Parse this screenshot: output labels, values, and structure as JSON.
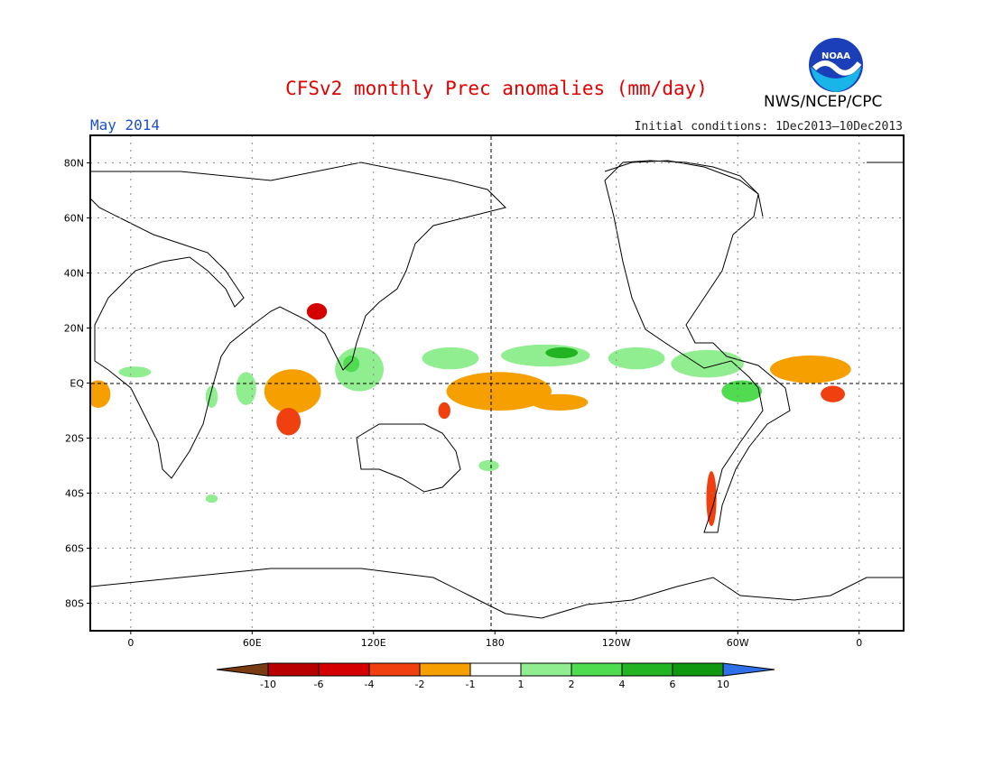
{
  "title": "CFSv2 monthly Prec anomalies (mm/day)",
  "agency": "NWS/NCEP/CPC",
  "logo_text": "NOAA",
  "period": "May 2014",
  "initial_conditions": "Initial conditions: 1Dec2013–10Dec2013",
  "map": {
    "lon_range": [
      -20,
      22
    ],
    "lat_range": [
      -90,
      90
    ],
    "lat_ticks": [
      "80N",
      "60N",
      "40N",
      "20N",
      "EQ",
      "20S",
      "40S",
      "60S",
      "80S"
    ],
    "lon_ticks": [
      "0",
      "60E",
      "120E",
      "180",
      "120W",
      "60W",
      "0"
    ],
    "grid": "dotted",
    "reference_lines": [
      "EQ",
      "180"
    ]
  },
  "colorbar": {
    "labels": [
      "-10",
      "-6",
      "-4",
      "-2",
      "-1",
      "1",
      "2",
      "4",
      "6",
      "10"
    ],
    "colors": [
      "#7a3b12",
      "#b80000",
      "#d40000",
      "#f04010",
      "#f5a000",
      "#ffffff",
      "#90ee90",
      "#50dc50",
      "#22b422",
      "#109810",
      "#2f6fe8"
    ]
  },
  "anomalies": [
    {
      "name": "central-pacific-dry",
      "lon": 180,
      "lat": -2,
      "w": 18,
      "h": 5,
      "color": "#f04010"
    },
    {
      "name": "central-pacific-dry-core",
      "lon": 178,
      "lat": -1,
      "w": 10,
      "h": 3,
      "color": "#d40000"
    },
    {
      "name": "central-pacific-dry-edge",
      "lon": 182,
      "lat": -3,
      "w": 26,
      "h": 7,
      "color": "#f5a000"
    },
    {
      "name": "east-pacific-dry",
      "lon": 212,
      "lat": -7,
      "w": 14,
      "h": 3,
      "color": "#f5a000"
    },
    {
      "name": "atlantic-dry",
      "lon": 332,
      "lat": 5,
      "w": 16,
      "h": 4,
      "color": "#f04010"
    },
    {
      "name": "atlantic-dry-core",
      "lon": 330,
      "lat": 5,
      "w": 6,
      "h": 2,
      "color": "#b80000"
    },
    {
      "name": "atlantic-dry-edge",
      "lon": 336,
      "lat": 5,
      "w": 20,
      "h": 5,
      "color": "#f5a000"
    },
    {
      "name": "indian-ocean-dry",
      "lon": 80,
      "lat": -2,
      "w": 10,
      "h": 5,
      "color": "#f04010"
    },
    {
      "name": "indian-ocean-dry-edge",
      "lon": 80,
      "lat": -3,
      "w": 14,
      "h": 8,
      "color": "#f5a000"
    },
    {
      "name": "s-indian-dry",
      "lon": 78,
      "lat": -14,
      "w": 6,
      "h": 5,
      "color": "#f04010"
    },
    {
      "name": "tibet-dry",
      "lon": 92,
      "lat": 26,
      "w": 5,
      "h": 3,
      "color": "#d40000"
    },
    {
      "name": "andes-dry",
      "lon": 287,
      "lat": -42,
      "w": 2.5,
      "h": 10,
      "color": "#f04010"
    },
    {
      "name": "gulf-guinea-dry",
      "lon": 347,
      "lat": -4,
      "w": 6,
      "h": 3,
      "color": "#f04010"
    },
    {
      "name": "w-africa-coast-dry",
      "lon": -16,
      "lat": -4,
      "w": 6,
      "h": 5,
      "color": "#f5a000"
    },
    {
      "name": "new-guinea-dry",
      "lon": 155,
      "lat": -10,
      "w": 3,
      "h": 3,
      "color": "#f04010"
    },
    {
      "name": "pacific-itcz-wet",
      "lon": 205,
      "lat": 10,
      "w": 22,
      "h": 4,
      "color": "#90ee90"
    },
    {
      "name": "pacific-itcz-wet-core",
      "lon": 213,
      "lat": 11,
      "w": 8,
      "h": 2,
      "color": "#22b422"
    },
    {
      "name": "west-pacific-wet",
      "lon": 158,
      "lat": 9,
      "w": 14,
      "h": 4,
      "color": "#90ee90"
    },
    {
      "name": "e-pacific-wet",
      "lon": 250,
      "lat": 9,
      "w": 14,
      "h": 4,
      "color": "#90ee90"
    },
    {
      "name": "caribbean-wet",
      "lon": 285,
      "lat": 7,
      "w": 18,
      "h": 5,
      "color": "#90ee90"
    },
    {
      "name": "amazon-wet",
      "lon": 302,
      "lat": -3,
      "w": 10,
      "h": 4,
      "color": "#50dc50"
    },
    {
      "name": "e-africa-wet",
      "lon": 40,
      "lat": -5,
      "w": 3,
      "h": 4,
      "color": "#90ee90"
    },
    {
      "name": "w-indian-wet",
      "lon": 57,
      "lat": -2,
      "w": 5,
      "h": 6,
      "color": "#90ee90"
    },
    {
      "name": "maritime-wet",
      "lon": 113,
      "lat": 5,
      "w": 12,
      "h": 8,
      "color": "#90ee90"
    },
    {
      "name": "maritime-wet-core",
      "lon": 109,
      "lat": 7,
      "w": 4,
      "h": 3,
      "color": "#50dc50"
    },
    {
      "name": "s-pacific-wet",
      "lon": 177,
      "lat": -30,
      "w": 5,
      "h": 2,
      "color": "#90ee90"
    },
    {
      "name": "w-africa-wet",
      "lon": 2,
      "lat": 4,
      "w": 8,
      "h": 2,
      "color": "#90ee90"
    },
    {
      "name": "s-indian-wet",
      "lon": 40,
      "lat": -42,
      "w": 3,
      "h": 1.5,
      "color": "#90ee90"
    }
  ]
}
